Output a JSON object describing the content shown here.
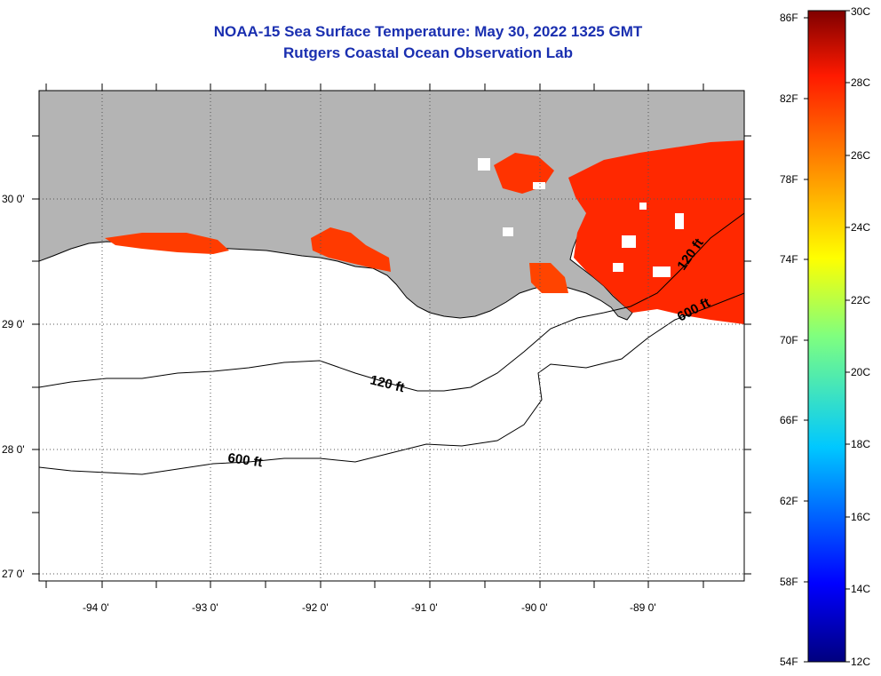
{
  "title": {
    "line1": "NOAA-15 Sea Surface Temperature:  May 30, 2022 1325 GMT",
    "line2": "Rutgers Coastal Ocean Observation Lab"
  },
  "map": {
    "lat_labels": [
      "30 0'",
      "29 0'",
      "28 0'",
      "27 0'"
    ],
    "lon_labels": [
      "-94 0'",
      "-93 0'",
      "-92 0'",
      "-91 0'",
      "-90 0'",
      "-89 0'"
    ],
    "contour_labels": [
      "120 ft",
      "120 ft",
      "600 ft",
      "600 ft"
    ],
    "colors": {
      "land": "#b4b4b4",
      "sst_warm": "#ff3300",
      "sst_hot": "#ee1100",
      "coast": "#000000"
    }
  },
  "colorbar": {
    "fahrenheit_labels": [
      "86F",
      "82F",
      "78F",
      "74F",
      "70F",
      "66F",
      "62F",
      "58F",
      "54F"
    ],
    "celsius_labels": [
      "30C",
      "28C",
      "26C",
      "24C",
      "22C",
      "20C",
      "18C",
      "16C",
      "14C",
      "12C"
    ]
  }
}
